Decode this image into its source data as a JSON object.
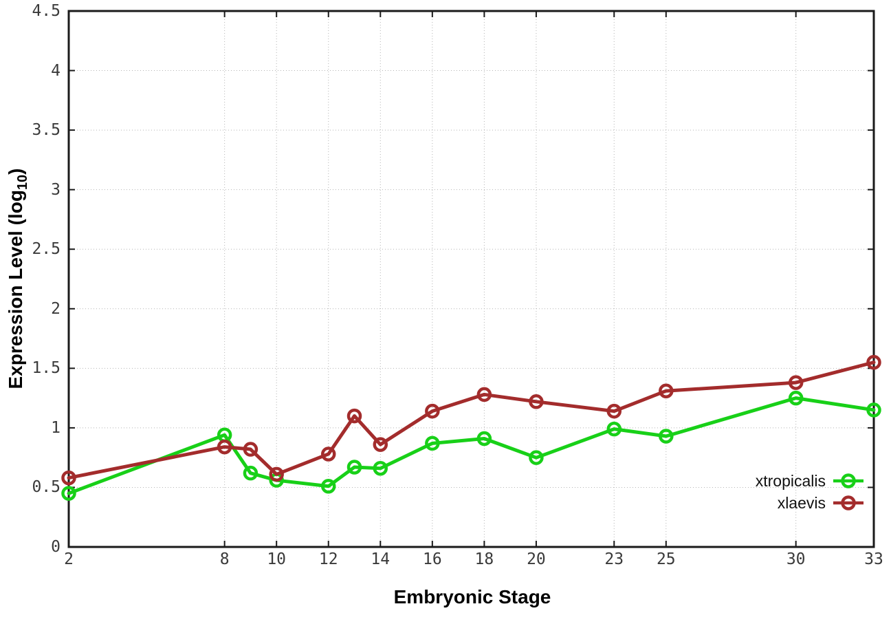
{
  "chart_data": {
    "type": "line",
    "title": "",
    "xlabel": "Embryonic Stage",
    "ylabel_prefix": "Expression Level (log",
    "ylabel_sub": "10",
    "ylabel_suffix": ")",
    "x": [
      2,
      8,
      9,
      10,
      12,
      13,
      14,
      16,
      18,
      20,
      23,
      25,
      30,
      33
    ],
    "series": [
      {
        "name": "xtropicalis",
        "color": "#18d018",
        "values": [
          0.45,
          0.94,
          0.62,
          0.56,
          0.51,
          0.67,
          0.66,
          0.87,
          0.91,
          0.75,
          0.99,
          0.93,
          1.25,
          1.15
        ]
      },
      {
        "name": "xlaevis",
        "color": "#a32c2c",
        "values": [
          0.58,
          0.84,
          0.82,
          0.61,
          0.78,
          1.1,
          0.86,
          1.14,
          1.28,
          1.22,
          1.14,
          1.31,
          1.38,
          1.55
        ]
      }
    ],
    "xlim": [
      2,
      33
    ],
    "ylim": [
      0,
      4.5
    ],
    "x_ticks": {
      "values": [
        2,
        8,
        10,
        12,
        14,
        16,
        18,
        20,
        23,
        25,
        30,
        33
      ],
      "labels": [
        "2",
        "8",
        "10",
        "12",
        "14",
        "16",
        "18",
        "20",
        "23",
        "25",
        "30",
        "33"
      ]
    },
    "y_ticks": {
      "values": [
        0,
        0.5,
        1,
        1.5,
        2,
        2.5,
        3,
        3.5,
        4,
        4.5
      ],
      "labels": [
        "0",
        "0.5",
        "1",
        "1.5",
        "2",
        "2.5",
        "3",
        "3.5",
        "4",
        "4.5"
      ]
    },
    "grid": true,
    "legend_position": "bottom-right",
    "axis_color": "#1a1a1a",
    "grid_color": "#b3b3b3",
    "tick_label_color": "#3a3a3a",
    "background_color": "#ffffff"
  }
}
